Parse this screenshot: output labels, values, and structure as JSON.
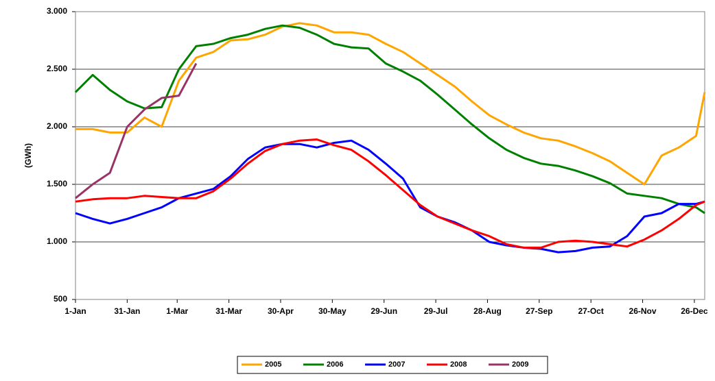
{
  "chart_data": {
    "type": "line",
    "y_label": "(GWh)",
    "x": [
      0,
      10,
      20,
      30,
      40,
      50,
      60,
      70,
      80,
      90,
      100,
      110,
      120,
      130,
      140,
      150,
      160,
      170,
      180,
      190,
      200,
      210,
      220,
      230,
      240,
      250,
      260,
      270,
      280,
      290,
      300,
      310,
      320,
      330,
      340,
      350,
      360,
      365
    ],
    "xlim": [
      0,
      365
    ],
    "xticks": [
      {
        "value": 0,
        "label": "1-Jan"
      },
      {
        "value": 30,
        "label": "31-Jan"
      },
      {
        "value": 59,
        "label": "1-Mar"
      },
      {
        "value": 89,
        "label": "31-Mar"
      },
      {
        "value": 119,
        "label": "30-Apr"
      },
      {
        "value": 149,
        "label": "30-May"
      },
      {
        "value": 179,
        "label": "29-Jun"
      },
      {
        "value": 209,
        "label": "29-Jul"
      },
      {
        "value": 239,
        "label": "28-Aug"
      },
      {
        "value": 269,
        "label": "27-Sep"
      },
      {
        "value": 299,
        "label": "27-Oct"
      },
      {
        "value": 329,
        "label": "26-Nov"
      },
      {
        "value": 359,
        "label": "26-Dec"
      }
    ],
    "ylim": [
      500,
      3000
    ],
    "yticks": [
      500,
      {
        "value": 1000,
        "label": "1.000"
      },
      {
        "value": 1500,
        "label": "1.500"
      },
      {
        "value": 2000,
        "label": "2.000"
      },
      {
        "value": 2500,
        "label": "2.500"
      },
      {
        "value": 3000,
        "label": "3.000"
      }
    ],
    "grid": true,
    "legend": "bottom",
    "series": [
      {
        "name": "2005",
        "color": "#ffa500",
        "values": [
          1980,
          1980,
          1950,
          1950,
          2080,
          2000,
          2400,
          2600,
          2650,
          2750,
          2760,
          2800,
          2870,
          2900,
          2880,
          2820,
          2820,
          2800,
          2720,
          2650,
          2550,
          2450,
          2350,
          2220,
          2100,
          2020,
          1950,
          1900,
          1880,
          1830,
          1770,
          1700,
          1600,
          1500,
          1750,
          1820,
          1920,
          2300
        ]
      },
      {
        "name": "2006",
        "color": "#008000",
        "values": [
          2300,
          2450,
          2320,
          2220,
          2160,
          2170,
          2500,
          2700,
          2720,
          2770,
          2800,
          2850,
          2880,
          2860,
          2800,
          2720,
          2690,
          2680,
          2550,
          2480,
          2400,
          2280,
          2150,
          2020,
          1900,
          1800,
          1730,
          1680,
          1660,
          1620,
          1570,
          1510,
          1420,
          1400,
          1380,
          1330,
          1300,
          1250
        ]
      },
      {
        "name": "2007",
        "color": "#0000ff",
        "values": [
          1250,
          1200,
          1160,
          1200,
          1250,
          1300,
          1380,
          1420,
          1460,
          1570,
          1720,
          1820,
          1850,
          1850,
          1820,
          1860,
          1880,
          1800,
          1680,
          1550,
          1300,
          1220,
          1170,
          1100,
          1000,
          970,
          950,
          940,
          910,
          920,
          950,
          960,
          1050,
          1220,
          1250,
          1330,
          1330,
          1350
        ]
      },
      {
        "name": "2008",
        "color": "#ff0000",
        "values": [
          1350,
          1370,
          1380,
          1380,
          1400,
          1390,
          1380,
          1380,
          1440,
          1550,
          1680,
          1790,
          1850,
          1880,
          1890,
          1840,
          1800,
          1700,
          1580,
          1450,
          1320,
          1220,
          1160,
          1100,
          1050,
          980,
          950,
          950,
          1000,
          1010,
          1000,
          980,
          960,
          1020,
          1100,
          1200,
          1320,
          1350
        ]
      },
      {
        "name": "2009",
        "color": "#993366",
        "values": [
          1380,
          1500,
          1600,
          2000,
          2150,
          2250,
          2270,
          2550,
          null,
          null,
          null,
          null,
          null,
          null,
          null,
          null,
          null,
          null,
          null,
          null,
          null,
          null,
          null,
          null,
          null,
          null,
          null,
          null,
          null,
          null,
          null,
          null,
          null,
          null,
          null,
          null,
          null,
          null
        ]
      }
    ]
  }
}
